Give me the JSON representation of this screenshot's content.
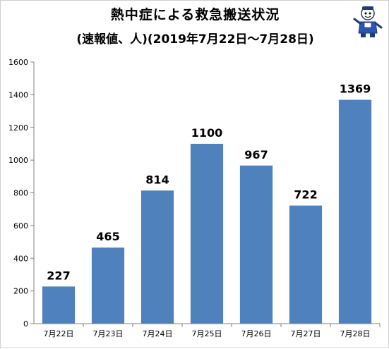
{
  "chart_data": {
    "type": "bar",
    "title": "熱中症による救急搬送状況",
    "subtitle": "(速報値、人)(2019年7月22日～7月28日)",
    "categories": [
      "7月22日",
      "7月23日",
      "7月24日",
      "7月25日",
      "7月26日",
      "7月27日",
      "7月28日"
    ],
    "values": [
      227,
      465,
      814,
      1100,
      967,
      722,
      1369
    ],
    "ylim": [
      0,
      1600
    ],
    "yticks": [
      0,
      200,
      400,
      600,
      800,
      1000,
      1200,
      1400,
      1600
    ],
    "grid": false,
    "legend": "none",
    "bar_color": "#4f81bd"
  },
  "mascot_icon": "mascot-character-icon"
}
